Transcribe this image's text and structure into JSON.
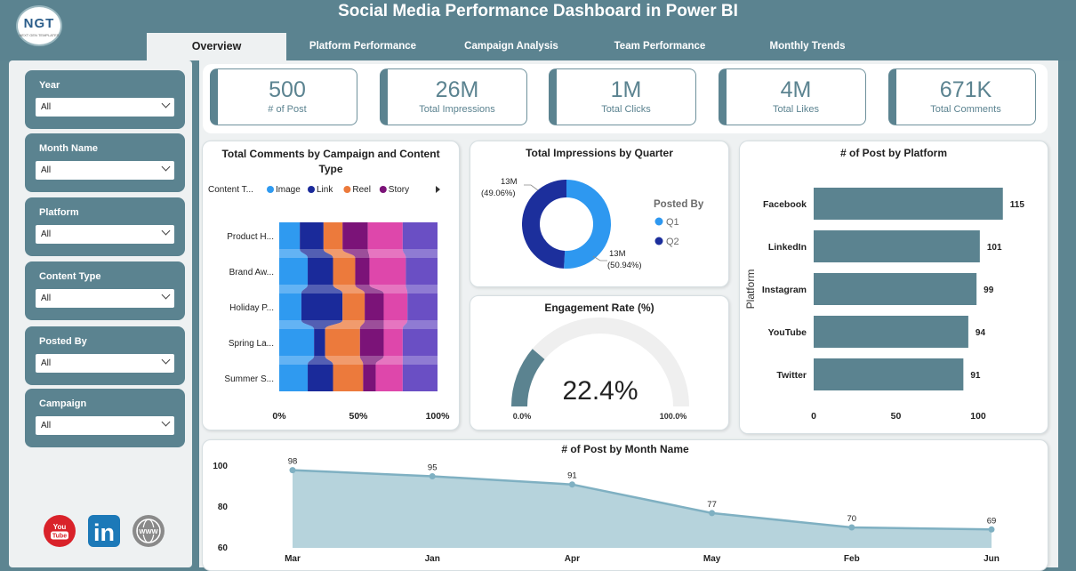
{
  "header": {
    "title": "Social Media Performance Dashboard in Power BI",
    "logo_text": "NGT",
    "logo_sub": "NEXT GEN TEMPLATES"
  },
  "tabs": [
    {
      "label": "Overview",
      "active": true
    },
    {
      "label": "Platform Performance",
      "active": false
    },
    {
      "label": "Campaign Analysis",
      "active": false
    },
    {
      "label": "Team Performance",
      "active": false
    },
    {
      "label": "Monthly Trends",
      "active": false
    }
  ],
  "slicers": [
    {
      "label": "Year",
      "value": "All"
    },
    {
      "label": "Month Name",
      "value": "All"
    },
    {
      "label": "Platform",
      "value": "All"
    },
    {
      "label": "Content Type",
      "value": "All"
    },
    {
      "label": "Posted By",
      "value": "All"
    },
    {
      "label": "Campaign",
      "value": "All"
    }
  ],
  "social_icons": [
    "youtube-icon",
    "linkedin-icon",
    "web-globe-icon"
  ],
  "social_icon_text": {
    "youtube": "You Tube",
    "linkedin": "in",
    "web": "WWW"
  },
  "kpis": [
    {
      "value": "500",
      "label": "# of Post"
    },
    {
      "value": "26M",
      "label": "Total Impressions"
    },
    {
      "value": "1M",
      "label": "Total Clicks"
    },
    {
      "value": "4M",
      "label": "Total Likes"
    },
    {
      "value": "671K",
      "label": "Total Comments"
    }
  ],
  "colors": {
    "accent": "#5b8390",
    "image": "#2f9af0",
    "link": "#1a2a9a",
    "reel": "#ec7a3c",
    "story": "#7b1378",
    "fifth": "#de47ab",
    "sixth": "#6a4fc4",
    "q1": "#2e98f0",
    "q2": "#1c2f9c",
    "bar": "#5b8390",
    "area_fill": "#b6d3dc",
    "area_line": "#7fb0c2"
  },
  "chart_data": [
    {
      "type": "bar",
      "subtype": "100% stacked ribbon",
      "title": "Total Comments by Campaign and Content Type",
      "legend_title": "Content T...",
      "legend": [
        "Image",
        "Link",
        "Reel",
        "Story"
      ],
      "categories": [
        "Product H...",
        "Brand Aw...",
        "Holiday P...",
        "Spring La...",
        "Summer S..."
      ],
      "series": [
        {
          "name": "Image",
          "values": [
            13,
            18,
            14,
            22,
            18
          ]
        },
        {
          "name": "Link",
          "values": [
            15,
            16,
            26,
            7,
            16
          ]
        },
        {
          "name": "Reel",
          "values": [
            12,
            14,
            14,
            22,
            19
          ]
        },
        {
          "name": "Story",
          "values": [
            16,
            9,
            12,
            15,
            8
          ]
        },
        {
          "values": [
            22,
            23,
            15,
            12,
            17
          ]
        },
        {
          "values": [
            22,
            20,
            19,
            22,
            22
          ]
        }
      ],
      "x_ticks": [
        "0%",
        "50%",
        "100%"
      ]
    },
    {
      "type": "pie",
      "subtype": "donut",
      "title": "Total Impressions by Quarter",
      "legend_title": "Posted By",
      "slices": [
        {
          "name": "Q1",
          "value": 50.94,
          "label": "13M",
          "pct": "(50.94%)"
        },
        {
          "name": "Q2",
          "value": 49.06,
          "label": "13M",
          "pct": "(49.06%)"
        }
      ]
    },
    {
      "type": "gauge",
      "title": "Engagement Rate (%)",
      "value": 22.4,
      "value_label": "22.4%",
      "min_label": "0.0%",
      "max_label": "100.0%",
      "min": 0,
      "max": 100
    },
    {
      "type": "bar",
      "orientation": "horizontal",
      "title": "# of Post by Platform",
      "ylabel": "Platform",
      "categories": [
        "Facebook",
        "LinkedIn",
        "Instagram",
        "YouTube",
        "Twitter"
      ],
      "values": [
        115,
        101,
        99,
        94,
        91
      ],
      "x_ticks": [
        "0",
        "50",
        "100"
      ],
      "xlim": [
        0,
        120
      ]
    },
    {
      "type": "area",
      "title": "# of Post by Month Name",
      "categories": [
        "Mar",
        "Jan",
        "Apr",
        "May",
        "Feb",
        "Jun"
      ],
      "values": [
        98,
        95,
        91,
        77,
        70,
        69
      ],
      "y_ticks": [
        "100",
        "80",
        "60"
      ],
      "ylim": [
        60,
        100
      ]
    }
  ]
}
